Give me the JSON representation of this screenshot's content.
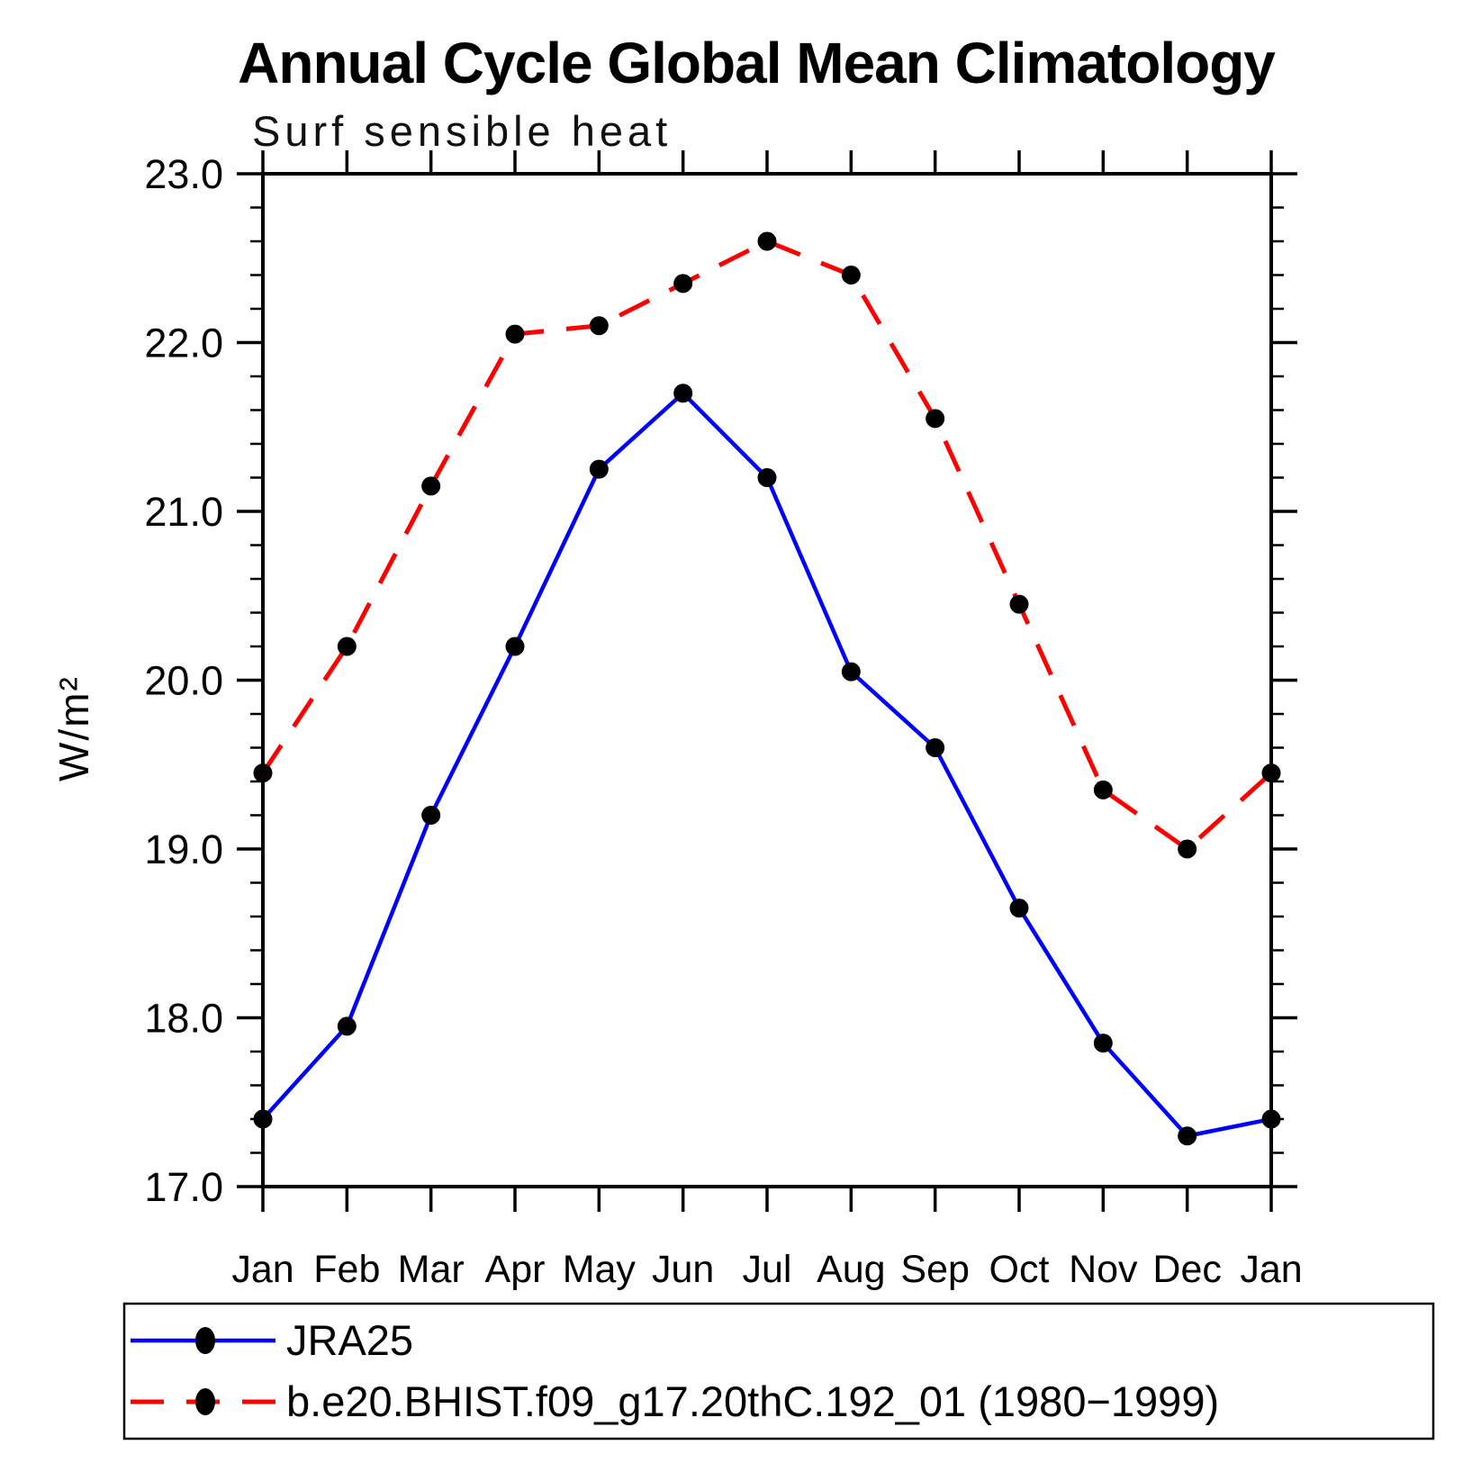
{
  "title": "Annual Cycle Global Mean Climatology",
  "subtitle": "Surf sensible heat",
  "chart_data": {
    "type": "line",
    "title": "Annual Cycle Global Mean Climatology",
    "subtitle": "Surf sensible heat",
    "ylabel": "W/m²",
    "xlabel": "",
    "categories": [
      "Jan",
      "Feb",
      "Mar",
      "Apr",
      "May",
      "Jun",
      "Jul",
      "Aug",
      "Sep",
      "Oct",
      "Nov",
      "Dec",
      "Jan"
    ],
    "ylim": [
      17.0,
      23.0
    ],
    "y_major_step": 1.0,
    "y_minor_step": 0.2,
    "y_tick_labels": [
      "17.0",
      "18.0",
      "19.0",
      "20.0",
      "21.0",
      "22.0",
      "23.0"
    ],
    "grid": "off",
    "legend_position": "bottom-left-box",
    "marker_color": "#000000",
    "series": [
      {
        "name": "JRA25",
        "color": "#0000ff",
        "line_style": "solid",
        "marker": "filled-circle",
        "values": [
          17.4,
          17.95,
          19.2,
          20.2,
          21.25,
          21.7,
          21.2,
          20.05,
          19.6,
          18.65,
          17.85,
          17.3,
          17.4
        ]
      },
      {
        "name": "b.e20.BHIST.f09_g17.20thC.192_01 (1980−1999)",
        "color": "#ff0000",
        "line_style": "dashed",
        "marker": "filled-circle",
        "values": [
          19.45,
          20.2,
          21.15,
          22.05,
          22.1,
          22.35,
          22.6,
          22.4,
          21.55,
          20.45,
          19.35,
          19.0,
          19.45
        ]
      }
    ]
  }
}
